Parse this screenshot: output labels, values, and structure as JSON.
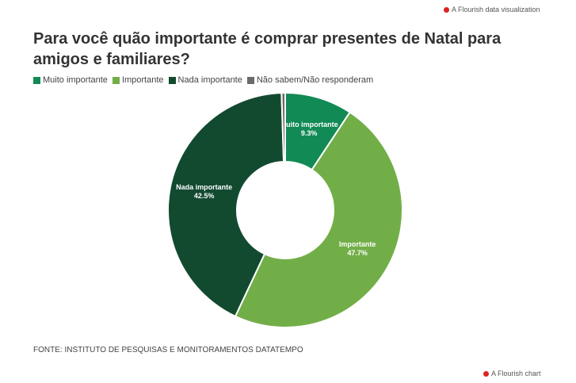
{
  "branding": {
    "top": "A Flourish data visualization",
    "bottom": "A Flourish chart"
  },
  "chart_data": {
    "type": "pie",
    "donut": true,
    "title": "Para você quão importante é comprar presentes de Natal para amigos e familiares?",
    "source": "FONTE: INSTITUTO DE PESQUISAS E MONITORAMENTOS DATATEMPO",
    "categories": [
      "Muito importante",
      "Importante",
      "Nada importante",
      "Não sabem/Não responderam"
    ],
    "values": [
      9.3,
      47.7,
      42.5,
      0.5
    ],
    "value_labels": [
      "9.3%",
      "47.7%",
      "42.5%",
      null
    ],
    "colors": [
      "#128a56",
      "#72ae48",
      "#124a30",
      "#6b6b6b"
    ]
  }
}
